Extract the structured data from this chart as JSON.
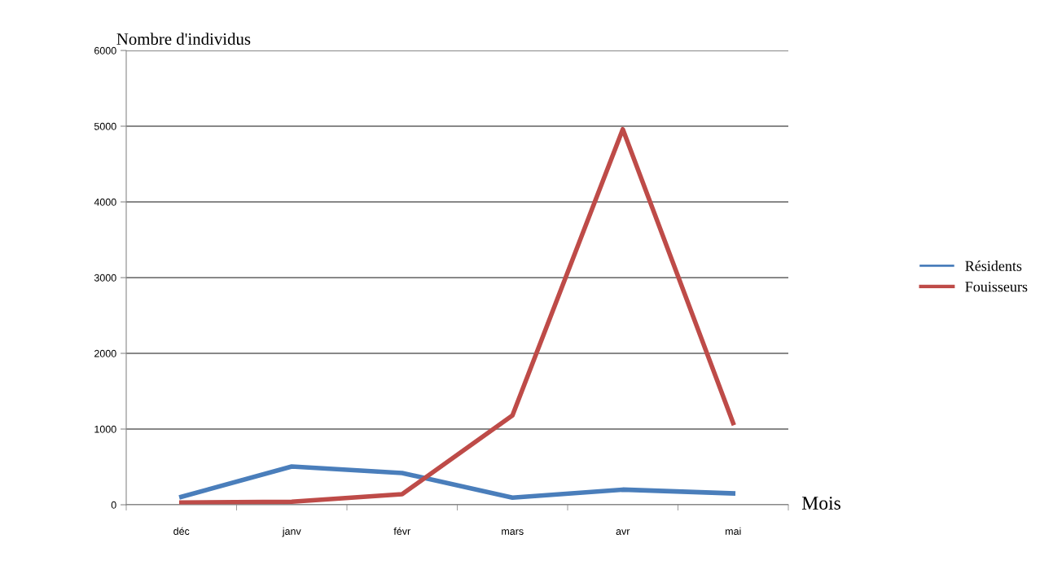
{
  "chart_data": {
    "type": "line",
    "xlabel": "Mois",
    "ylabel": "Nombre d'individus",
    "categories": [
      "déc",
      "janv",
      "févr",
      "mars",
      "avr",
      "mai"
    ],
    "series": [
      {
        "name": "Résidents",
        "color": "#4a7ebb",
        "values": [
          105,
          505,
          420,
          95,
          200,
          150
        ]
      },
      {
        "name": "Fouisseurs",
        "color": "#be4b48",
        "values": [
          30,
          40,
          140,
          1180,
          4960,
          1080
        ]
      }
    ],
    "ylim": [
      0,
      6000
    ],
    "yticks": [
      0,
      1000,
      2000,
      3000,
      4000,
      5000,
      6000
    ],
    "grid": "y",
    "legend": "right",
    "marker": "none",
    "line_style": "solid"
  }
}
